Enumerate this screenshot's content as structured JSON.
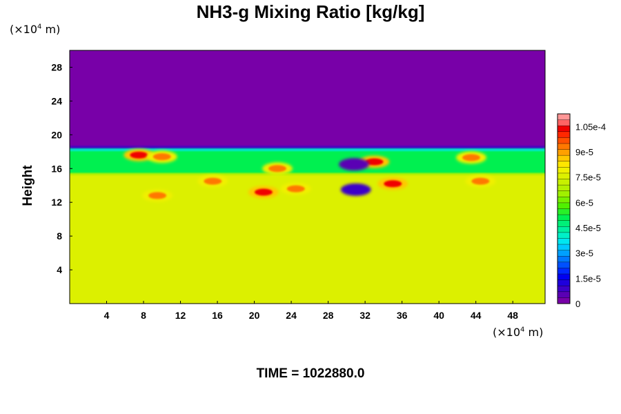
{
  "chart_data": {
    "type": "heatmap",
    "title": "NH3-g Mixing Ratio [kg/kg]",
    "ylabel": "Height",
    "x_unit_prefix": "(×10",
    "x_unit_exp": "4",
    "x_unit_suffix": " m)",
    "y_unit_prefix": "(×10",
    "y_unit_exp": "4",
    "y_unit_suffix": " m)",
    "xlim": [
      0,
      51.5
    ],
    "ylim": [
      0,
      30
    ],
    "x_ticks": [
      "4",
      "8",
      "12",
      "16",
      "20",
      "24",
      "28",
      "32",
      "36",
      "40",
      "44",
      "48"
    ],
    "y_ticks": [
      "4",
      "8",
      "12",
      "16",
      "20",
      "24",
      "28"
    ],
    "background_value": 8e-05,
    "layers": [
      {
        "region": "upper",
        "y_from": 18.5,
        "y_to": 30,
        "value": 0
      },
      {
        "region": "transition",
        "y_from": 15.4,
        "y_to": 18.5,
        "value": 5.5e-05
      },
      {
        "region": "lower",
        "y_from": 0,
        "y_to": 15.4,
        "value": 8e-05
      }
    ],
    "features": [
      {
        "x": 9.5,
        "y": 12.8,
        "value": 0.0001
      },
      {
        "x": 7.5,
        "y": 17.6,
        "value": 0.00011
      },
      {
        "x": 10.0,
        "y": 17.4,
        "value": 0.0001
      },
      {
        "x": 15.5,
        "y": 14.5,
        "value": 0.0001
      },
      {
        "x": 21.0,
        "y": 13.2,
        "value": 0.00011
      },
      {
        "x": 24.5,
        "y": 13.6,
        "value": 0.0001
      },
      {
        "x": 22.5,
        "y": 16.0,
        "value": 0.0001
      },
      {
        "x": 33.0,
        "y": 16.8,
        "value": 0.00011
      },
      {
        "x": 35.0,
        "y": 14.2,
        "value": 0.00011
      },
      {
        "x": 44.5,
        "y": 14.5,
        "value": 0.0001
      },
      {
        "x": 43.5,
        "y": 17.3,
        "value": 0.0001
      },
      {
        "x": 31.0,
        "y": 13.5,
        "value": 1e-05
      },
      {
        "x": 30.8,
        "y": 16.5,
        "value": 5e-06
      }
    ],
    "colorbar": {
      "labels": [
        "0",
        "1.5e-5",
        "3e-5",
        "4.5e-5",
        "6e-5",
        "7.5e-5",
        "9e-5",
        "1.05e-4"
      ],
      "min": 0,
      "max": 0.0001125,
      "step": 3.75e-06,
      "colors": [
        "#7800a8",
        "#5a00b4",
        "#3c00c8",
        "#1e00dc",
        "#0000f0",
        "#0028ff",
        "#0050ff",
        "#0078ff",
        "#00a0ff",
        "#00c8ff",
        "#00e6f0",
        "#00f0c8",
        "#00f0a0",
        "#00f078",
        "#00f050",
        "#28f028",
        "#50f000",
        "#78f000",
        "#a0f000",
        "#b4f000",
        "#c8f000",
        "#dcf000",
        "#f0f000",
        "#ffe600",
        "#ffc800",
        "#ffa000",
        "#ff7800",
        "#ff5000",
        "#ff2800",
        "#f00000",
        "#ff6464",
        "#ff9696"
      ]
    },
    "time_label": "TIME = 1022880.0"
  }
}
